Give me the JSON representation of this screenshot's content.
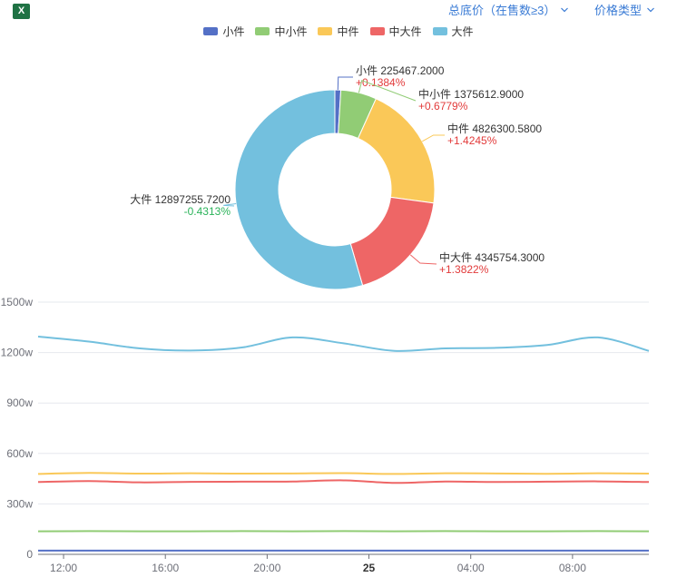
{
  "toolbar": {
    "excel_icon": "excel-icon",
    "excel_glyph": "X",
    "filter_dropdown": "总底价（在售数≥3）",
    "price_type_dropdown": "价格类型"
  },
  "colors": {
    "small": "#5470c6",
    "small_medium": "#91cc75",
    "medium": "#fac858",
    "medium_large": "#ee6666",
    "large": "#73c0de",
    "accent": "#3a7bd5",
    "positive": "#e23b3b",
    "negative": "#2bb35a"
  },
  "legend": [
    {
      "label": "小件",
      "color": "#5470c6"
    },
    {
      "label": "中小件",
      "color": "#91cc75"
    },
    {
      "label": "中件",
      "color": "#fac858"
    },
    {
      "label": "中大件",
      "color": "#ee6666"
    },
    {
      "label": "大件",
      "color": "#73c0de"
    }
  ],
  "chart_data": [
    {
      "type": "pie",
      "slices": [
        {
          "label": "小件",
          "value": 225467.2,
          "value_text": "225467.2000",
          "change": "+0.1384%",
          "color": "#5470c6"
        },
        {
          "label": "中小件",
          "value": 1375612.9,
          "value_text": "1375612.9000",
          "change": "+0.6779%",
          "color": "#91cc75"
        },
        {
          "label": "中件",
          "value": 4826300.58,
          "value_text": "4826300.5800",
          "change": "+1.4245%",
          "color": "#fac858"
        },
        {
          "label": "中大件",
          "value": 4345754.3,
          "value_text": "4345754.3000",
          "change": "+1.3822%",
          "color": "#ee6666"
        },
        {
          "label": "大件",
          "value": 12897255.72,
          "value_text": "12897255.7200",
          "change": "-0.4313%",
          "color": "#73c0de"
        }
      ]
    },
    {
      "type": "line",
      "x_ticks": [
        "12:00",
        "16:00",
        "20:00",
        "25",
        "04:00",
        "08:00"
      ],
      "x_tick_hours": [
        12,
        16,
        20,
        24,
        28,
        32
      ],
      "x_range_hours": [
        11,
        35
      ],
      "ylim": [
        0,
        1500
      ],
      "y_ticks": [
        "0",
        "300w",
        "600w",
        "900w",
        "1200w",
        "1500w"
      ],
      "y_tick_values": [
        0,
        300,
        600,
        900,
        1200,
        1500
      ],
      "x_hours": [
        11,
        13,
        15,
        17,
        19,
        21,
        23,
        25,
        27,
        29,
        31,
        33,
        35
      ],
      "series": [
        {
          "name": "大件",
          "color": "#73c0de",
          "values": [
            1295,
            1265,
            1225,
            1212,
            1230,
            1290,
            1255,
            1210,
            1225,
            1228,
            1245,
            1290,
            1210
          ]
        },
        {
          "name": "中件",
          "color": "#fac858",
          "values": [
            478,
            484,
            480,
            482,
            480,
            481,
            483,
            478,
            482,
            481,
            479,
            482,
            480
          ]
        },
        {
          "name": "中大件",
          "color": "#ee6666",
          "values": [
            430,
            436,
            428,
            431,
            432,
            433,
            440,
            425,
            433,
            430,
            432,
            434,
            430
          ]
        },
        {
          "name": "中小件",
          "color": "#91cc75",
          "values": [
            137,
            138,
            137,
            137,
            138,
            137,
            138,
            137,
            138,
            137,
            137,
            138,
            137
          ]
        },
        {
          "name": "小件",
          "color": "#5470c6",
          "values": [
            22,
            22,
            22,
            22,
            22,
            22,
            22,
            22,
            22,
            22,
            22,
            22,
            22
          ]
        }
      ]
    }
  ]
}
